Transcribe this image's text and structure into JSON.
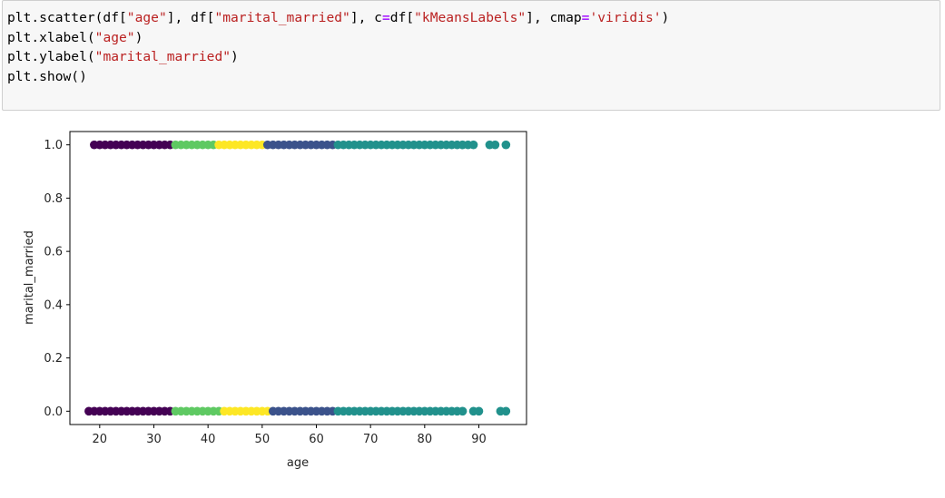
{
  "code": {
    "lines": [
      [
        {
          "t": "plt.scatter(df[",
          "k": "plain"
        },
        {
          "t": "\"age\"",
          "k": "str"
        },
        {
          "t": "], df[",
          "k": "plain"
        },
        {
          "t": "\"marital_married\"",
          "k": "str"
        },
        {
          "t": "], c",
          "k": "plain"
        },
        {
          "t": "=",
          "k": "op"
        },
        {
          "t": "df[",
          "k": "plain"
        },
        {
          "t": "\"kMeansLabels\"",
          "k": "str"
        },
        {
          "t": "], cmap",
          "k": "plain"
        },
        {
          "t": "=",
          "k": "op"
        },
        {
          "t": "'viridis'",
          "k": "str"
        },
        {
          "t": ")",
          "k": "plain"
        }
      ],
      [
        {
          "t": "plt.xlabel(",
          "k": "plain"
        },
        {
          "t": "\"age\"",
          "k": "str"
        },
        {
          "t": ")",
          "k": "plain"
        }
      ],
      [
        {
          "t": "plt.ylabel(",
          "k": "plain"
        },
        {
          "t": "\"marital_married\"",
          "k": "str"
        },
        {
          "t": ")",
          "k": "plain"
        }
      ],
      [
        {
          "t": "plt.show()",
          "k": "plain"
        }
      ]
    ]
  },
  "chart_data": {
    "type": "scatter",
    "xlabel": "age",
    "ylabel": "marital_married",
    "xlim": [
      14.5,
      98.8
    ],
    "ylim": [
      -0.05,
      1.05
    ],
    "xticks": [
      20,
      30,
      40,
      50,
      60,
      70,
      80,
      90
    ],
    "yticks": [
      0.0,
      0.2,
      0.4,
      0.6,
      0.8,
      1.0
    ],
    "xtick_labels": [
      "20",
      "30",
      "40",
      "50",
      "60",
      "70",
      "80",
      "90"
    ],
    "ytick_labels": [
      "0.0",
      "0.2",
      "0.4",
      "0.6",
      "0.8",
      "1.0"
    ],
    "grid": false,
    "colormap": "viridis",
    "cluster_colors": {
      "cluster_dark_purple": "#440154",
      "cluster_blue": "#3b528b",
      "cluster_teal": "#21918c",
      "cluster_green": "#5ec962",
      "cluster_yellow": "#fde725"
    },
    "clusters": [
      {
        "color": "#440154",
        "y1_age_range": [
          19,
          33
        ],
        "y0_age_range": [
          18,
          33
        ]
      },
      {
        "color": "#5ec962",
        "y1_age_range": [
          34,
          41
        ],
        "y0_age_range": [
          34,
          42
        ]
      },
      {
        "color": "#fde725",
        "y1_age_range": [
          42,
          50
        ],
        "y0_age_range": [
          43,
          51
        ]
      },
      {
        "color": "#3b528b",
        "y1_age_range": [
          51,
          63
        ],
        "y0_age_range": [
          52,
          63
        ]
      },
      {
        "color": "#21918c",
        "y1_age_range": [
          64,
          86
        ],
        "y0_age_range": [
          64,
          86
        ]
      }
    ],
    "outliers": [
      {
        "x": 87,
        "y": 1.0,
        "color": "#21918c"
      },
      {
        "x": 88,
        "y": 1.0,
        "color": "#21918c"
      },
      {
        "x": 89,
        "y": 1.0,
        "color": "#21918c"
      },
      {
        "x": 92,
        "y": 1.0,
        "color": "#21918c"
      },
      {
        "x": 93,
        "y": 1.0,
        "color": "#21918c"
      },
      {
        "x": 95,
        "y": 1.0,
        "color": "#21918c"
      },
      {
        "x": 87,
        "y": 0.0,
        "color": "#21918c"
      },
      {
        "x": 89,
        "y": 0.0,
        "color": "#21918c"
      },
      {
        "x": 90,
        "y": 0.0,
        "color": "#21918c"
      },
      {
        "x": 94,
        "y": 0.0,
        "color": "#21918c"
      },
      {
        "x": 95,
        "y": 0.0,
        "color": "#21918c"
      }
    ]
  }
}
